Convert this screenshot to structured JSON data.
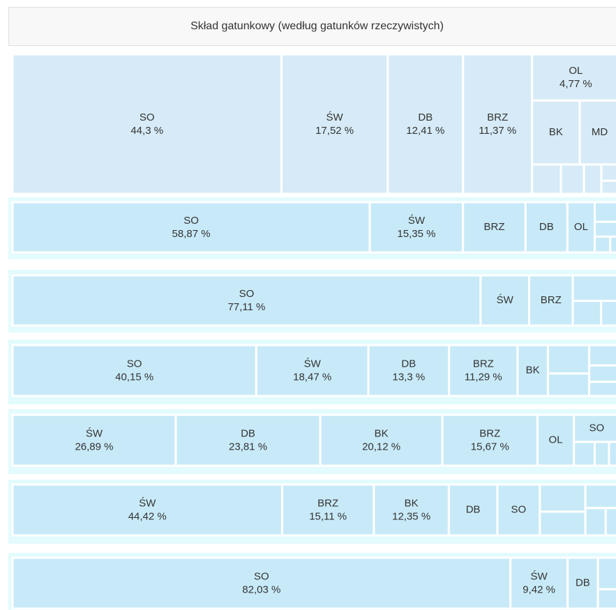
{
  "title": "Skład gatunkowy (według gatunków rzeczywistych)",
  "chart_data": [
    {
      "type": "treemap",
      "color": "#d6ebf7",
      "categories": [
        "SO",
        "ŚW",
        "DB",
        "BRZ",
        "OL",
        "BK",
        "MD",
        null,
        null,
        null,
        null,
        null
      ],
      "values": [
        44.3,
        17.52,
        12.41,
        11.37,
        4.77,
        3.6,
        3.0,
        1.0,
        0.8,
        0.6,
        0.35,
        0.28
      ],
      "value_labels": [
        "44,3 %",
        "17,52 %",
        "12,41 %",
        "11,37 %",
        "4,77 %",
        null,
        null,
        null,
        null,
        null,
        null,
        null
      ]
    },
    {
      "type": "treemap",
      "color": "#c8eaf8",
      "categories": [
        "SO",
        "ŚW",
        "BRZ",
        "DB",
        "OL",
        null,
        null,
        null,
        null
      ],
      "values": [
        58.87,
        15.35,
        10.3,
        6.9,
        4.5,
        1.6,
        1.2,
        0.8,
        0.48
      ],
      "value_labels": [
        "58,87 %",
        "15,35 %",
        null,
        null,
        null,
        null,
        null,
        null,
        null
      ]
    },
    {
      "type": "treemap",
      "color": "#c8eaf8",
      "categories": [
        "SO",
        "ŚW",
        "BRZ",
        null,
        null,
        null
      ],
      "values": [
        77.11,
        8.0,
        7.2,
        3.9,
        2.3,
        1.49
      ],
      "value_labels": [
        "77,11 %",
        null,
        null,
        null,
        null,
        null
      ]
    },
    {
      "type": "treemap",
      "color": "#c8eaf8",
      "categories": [
        "SO",
        "ŚW",
        "DB",
        "BRZ",
        "BK",
        null,
        null,
        null,
        null,
        null
      ],
      "values": [
        40.15,
        18.47,
        13.3,
        11.29,
        5.0,
        3.8,
        3.0,
        2.0,
        1.6,
        1.39
      ],
      "value_labels": [
        "40,15 %",
        "18,47 %",
        "13,3 %",
        "11,29 %",
        null,
        null,
        null,
        null,
        null,
        null
      ]
    },
    {
      "type": "treemap",
      "color": "#c8eaf8",
      "categories": [
        "ŚW",
        "DB",
        "BK",
        "BRZ",
        "OL",
        "SO",
        null,
        null,
        null
      ],
      "values": [
        26.89,
        23.81,
        20.12,
        15.67,
        6.0,
        4.0,
        1.6,
        1.1,
        0.81
      ],
      "value_labels": [
        "26,89 %",
        "23,81 %",
        "20,12 %",
        "15,67 %",
        null,
        null,
        null,
        null,
        null
      ]
    },
    {
      "type": "treemap",
      "color": "#c8eaf8",
      "categories": [
        "ŚW",
        "BRZ",
        "BK",
        "DB",
        "SO",
        null,
        null,
        null,
        null,
        null
      ],
      "values": [
        44.42,
        15.11,
        12.35,
        8.0,
        7.0,
        4.0,
        3.5,
        2.6,
        1.8,
        1.22
      ],
      "value_labels": [
        "44,42 %",
        "15,11 %",
        "12,35 %",
        null,
        null,
        null,
        null,
        null,
        null,
        null
      ]
    },
    {
      "type": "treemap",
      "color": "#c8eaf8",
      "categories": [
        "SO",
        "ŚW",
        "DB",
        null,
        null
      ],
      "values": [
        82.03,
        9.42,
        5.0,
        2.2,
        1.35
      ],
      "value_labels": [
        "82,03 %",
        "9,42 %",
        null,
        null,
        null
      ]
    }
  ]
}
